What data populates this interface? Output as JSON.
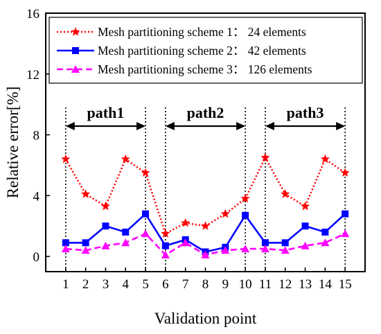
{
  "chart_data": {
    "type": "line",
    "xlabel": "Validation point",
    "ylabel": "Relative error[%]",
    "xlim": [
      0,
      16
    ],
    "ylim": [
      -1,
      16
    ],
    "x_ticks": [
      1,
      2,
      3,
      4,
      5,
      6,
      7,
      8,
      9,
      10,
      11,
      12,
      13,
      14,
      15
    ],
    "y_ticks": [
      0,
      4,
      8,
      12,
      16
    ],
    "grid": false,
    "legend_placement": "top",
    "x": [
      1,
      2,
      3,
      4,
      5,
      6,
      7,
      8,
      9,
      10,
      11,
      12,
      13,
      14,
      15
    ],
    "series": [
      {
        "name": "Mesh partitioning scheme 1： 24 elements",
        "color": "#ff0000",
        "line_style": "dotted",
        "marker": "star",
        "values": [
          6.4,
          4.1,
          3.3,
          6.4,
          5.5,
          1.5,
          2.2,
          2.0,
          2.8,
          3.8,
          6.5,
          4.1,
          3.3,
          6.4,
          5.5
        ]
      },
      {
        "name": "Mesh partitioning scheme 2： 42 elements",
        "color": "#0000ff",
        "line_style": "solid",
        "marker": "square",
        "values": [
          0.9,
          0.9,
          2.0,
          1.6,
          2.8,
          0.7,
          1.1,
          0.3,
          0.6,
          2.7,
          0.9,
          0.9,
          2.0,
          1.6,
          2.8
        ]
      },
      {
        "name": "Mesh partitioning scheme 3： 126 elements",
        "color": "#ff00ff",
        "line_style": "dashed",
        "marker": "triangle",
        "values": [
          0.5,
          0.4,
          0.7,
          0.9,
          1.5,
          0.1,
          0.9,
          0.1,
          0.4,
          0.5,
          0.5,
          0.4,
          0.7,
          0.9,
          1.5
        ]
      }
    ],
    "separators_x": [
      1,
      5,
      6,
      10,
      11,
      15
    ],
    "annotations": [
      {
        "label": "path1",
        "from": 1,
        "to": 5
      },
      {
        "label": "path2",
        "from": 6,
        "to": 10
      },
      {
        "label": "path3",
        "from": 11,
        "to": 15
      }
    ]
  }
}
